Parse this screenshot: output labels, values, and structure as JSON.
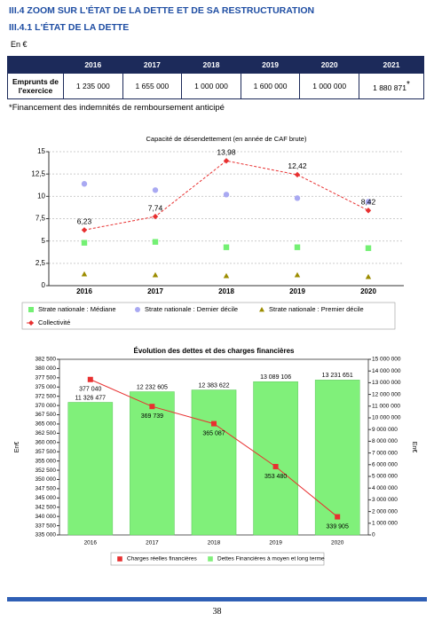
{
  "header": {
    "title": "III.4 ZOOM SUR L'ÉTAT DE LA DETTE ET DE SA RESTRUCTURATION",
    "subtitle": "III.4.1 L'ÉTAT DE LA DETTE",
    "unit": "En €"
  },
  "table": {
    "columns": [
      "2016",
      "2017",
      "2018",
      "2019",
      "2020",
      "2021"
    ],
    "rows": [
      [
        "Emprunts de l'exercice",
        "1 235 000",
        "1 655 000",
        "1 000 000",
        "1 600 000",
        "1 000 000",
        "1 880 871"
      ]
    ],
    "note_mark": "*"
  },
  "footnote": "*Financement des indemnités de remboursement anticipé",
  "page_number": "38",
  "chart_data": [
    {
      "type": "line",
      "title": "Capacité de désendettement (en année de CAF brute)",
      "categories": [
        "2016",
        "2017",
        "2018",
        "2019",
        "2020"
      ],
      "ylim": [
        0,
        15
      ],
      "yticks": [
        0,
        {
          "value": 2.5,
          "label": "2,5"
        },
        5,
        {
          "value": 7.5,
          "label": "7,5"
        },
        10,
        {
          "value": 12.5,
          "label": "12,5"
        },
        15
      ],
      "grid": true,
      "series": [
        {
          "name": "Strate nationale : Médiane",
          "color": "#74f074",
          "kind": "scatter",
          "marker": "square",
          "values": [
            4.8,
            4.9,
            4.3,
            4.3,
            4.2
          ]
        },
        {
          "name": "Strate nationale : Dernier décile",
          "color": "#a9a9f2",
          "kind": "scatter",
          "marker": "circle",
          "values": [
            11.4,
            10.7,
            10.2,
            9.8,
            9.4
          ]
        },
        {
          "name": "Strate nationale : Premier décile",
          "color": "#9c8c00",
          "kind": "scatter",
          "marker": "triangle",
          "values": [
            1.3,
            1.2,
            1.1,
            1.2,
            1.0
          ]
        },
        {
          "name": "Collectivité",
          "color": "#e83030",
          "kind": "line",
          "marker": "diamond",
          "values": [
            6.23,
            7.74,
            13.98,
            12.42,
            8.42
          ],
          "value_labels": [
            "6,23",
            "7,74",
            "13,98",
            "12,42",
            "8,42"
          ]
        }
      ]
    },
    {
      "type": "bar",
      "title": "Évolution des dettes et des charges financières",
      "categories": [
        "2016",
        "2017",
        "2018",
        "2019",
        "2020"
      ],
      "y_label": "En€",
      "y2_label": "En€",
      "ylim": [
        335000,
        382500
      ],
      "yticks": [
        {
          "value": 335000,
          "label": "335 000"
        },
        {
          "value": 337500,
          "label": "337 500"
        },
        {
          "value": 340000,
          "label": "340 000"
        },
        {
          "value": 342500,
          "label": "342 500"
        },
        {
          "value": 345000,
          "label": "345 000"
        },
        {
          "value": 347500,
          "label": "347 500"
        },
        {
          "value": 350000,
          "label": "350 000"
        },
        {
          "value": 352500,
          "label": "352 500"
        },
        {
          "value": 355000,
          "label": "355 000"
        },
        {
          "value": 357500,
          "label": "357 500"
        },
        {
          "value": 360000,
          "label": "360 000"
        },
        {
          "value": 362500,
          "label": "362 500"
        },
        {
          "value": 365000,
          "label": "365 000"
        },
        {
          "value": 367500,
          "label": "367 500"
        },
        {
          "value": 370000,
          "label": "370 000"
        },
        {
          "value": 372500,
          "label": "372 500"
        },
        {
          "value": 375000,
          "label": "375 000"
        },
        {
          "value": 377500,
          "label": "377 500"
        },
        {
          "value": 380000,
          "label": "380 000"
        },
        {
          "value": 382500,
          "label": "382 500"
        }
      ],
      "y2lim": [
        0,
        15000000
      ],
      "y2ticks": [
        0,
        {
          "value": 1000000,
          "label": "1 000 000"
        },
        {
          "value": 2000000,
          "label": "2 000 000"
        },
        {
          "value": 3000000,
          "label": "3 000 000"
        },
        {
          "value": 4000000,
          "label": "4 000 000"
        },
        {
          "value": 5000000,
          "label": "5 000 000"
        },
        {
          "value": 6000000,
          "label": "6 000 000"
        },
        {
          "value": 7000000,
          "label": "7 000 000"
        },
        {
          "value": 8000000,
          "label": "8 000 000"
        },
        {
          "value": 9000000,
          "label": "9 000 000"
        },
        {
          "value": 10000000,
          "label": "10 000 000"
        },
        {
          "value": 11000000,
          "label": "11 000 000"
        },
        {
          "value": 12000000,
          "label": "12 000 000"
        },
        {
          "value": 13000000,
          "label": "13 000 000"
        },
        {
          "value": 14000000,
          "label": "14 000 000"
        },
        {
          "value": 15000000,
          "label": "15 000 000"
        }
      ],
      "grid": false,
      "series": [
        {
          "name": "Charges réelles financières",
          "color": "#e83030",
          "kind": "line",
          "marker": "square",
          "values": [
            377040,
            369739,
            365087,
            353480,
            339905
          ],
          "value_labels": [
            "377 040",
            "369 739",
            "365 087",
            "353 480",
            "339 905"
          ]
        },
        {
          "name": "Dettes Financières à moyen et long terme",
          "color": "#80f07a",
          "kind": "bar",
          "axis": "y2",
          "values": [
            11326477,
            12232605,
            12383622,
            13089106,
            13231651
          ],
          "value_labels": [
            "11 326 477",
            "12 232 605",
            "12 383 622",
            "13 089 106",
            "13 231 651"
          ]
        }
      ]
    }
  ]
}
